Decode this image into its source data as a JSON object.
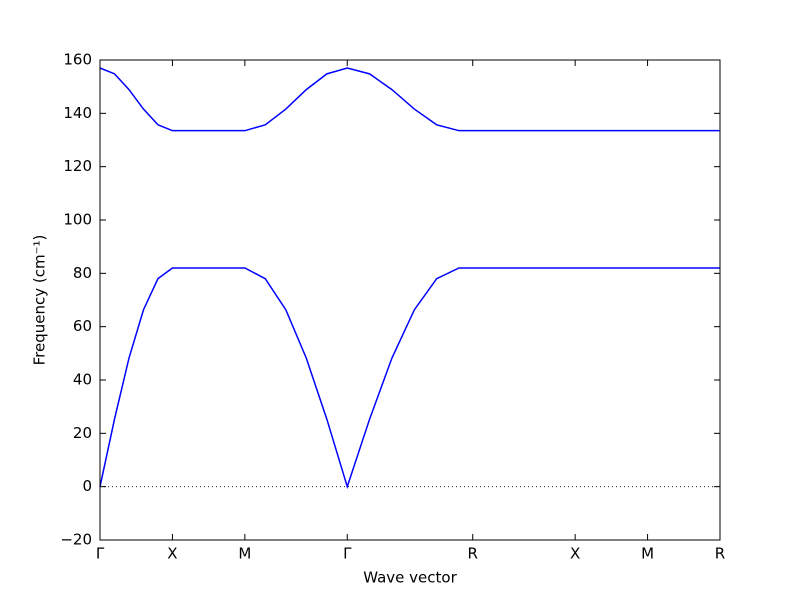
{
  "chart_data": {
    "type": "line",
    "xlabel": "Wave vector",
    "ylabel": "Frequency (cm⁻¹)",
    "x": [
      0,
      0.1,
      0.2,
      0.3,
      0.4,
      0.5,
      1.0,
      1.141,
      1.283,
      1.424,
      1.566,
      1.707,
      1.861,
      2.015,
      2.17,
      2.324,
      2.478,
      4.28
    ],
    "series": [
      {
        "color": "#0000ff",
        "values": [
          0,
          25.3,
          48.2,
          66.3,
          78.0,
          82,
          82,
          78.0,
          66.3,
          48.2,
          25.3,
          0,
          25.3,
          48.2,
          66.3,
          78.0,
          82,
          82
        ]
      },
      {
        "color": "#0000ff",
        "values": [
          157,
          154.8,
          148.9,
          141.6,
          135.7,
          133.5,
          133.5,
          135.7,
          141.6,
          148.9,
          154.8,
          157,
          154.8,
          148.9,
          141.6,
          135.7,
          133.5,
          133.5
        ]
      }
    ],
    "xlim": [
      0,
      4.28
    ],
    "xticks": [
      {
        "value": 0,
        "label": "Γ"
      },
      {
        "value": 0.5,
        "label": "X"
      },
      {
        "value": 1.0,
        "label": "M"
      },
      {
        "value": 1.707,
        "label": "Γ"
      },
      {
        "value": 2.573,
        "label": "R"
      },
      {
        "value": 3.28,
        "label": "X"
      },
      {
        "value": 3.78,
        "label": "M"
      },
      {
        "value": 4.28,
        "label": "R"
      }
    ],
    "ylim": [
      -20,
      160
    ],
    "yticks": [
      {
        "value": -20,
        "label": "−20"
      },
      0,
      20,
      40,
      60,
      80,
      100,
      120,
      140,
      160
    ],
    "zero_line": true,
    "grid": false
  }
}
